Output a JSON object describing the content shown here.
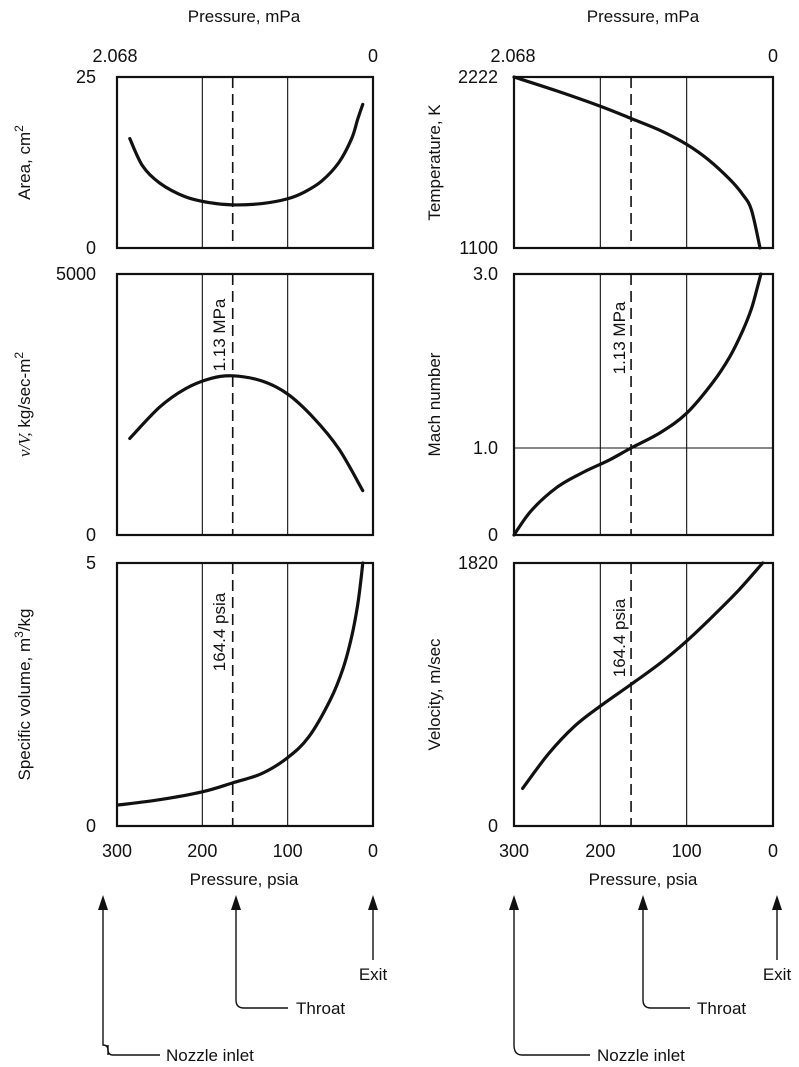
{
  "top_axis": {
    "label": "Pressure, mPa",
    "left_tick": "2.068",
    "right_tick": "0"
  },
  "bottom_axis": {
    "label": "Pressure, psia",
    "ticks": [
      "300",
      "200",
      "100",
      "0"
    ]
  },
  "annotations": {
    "throat_pressure_mpa": "1.13 MPa",
    "throat_pressure_psia": "164.4 psia",
    "nozzle_inlet": "Nozzle inlet",
    "throat": "Throat",
    "exit": "Exit"
  },
  "colors": {
    "ink": "#111111",
    "background": "#ffffff"
  },
  "chart_data": [
    {
      "type": "line",
      "ylabel": "Area, cm2",
      "ylabel_main": "Area, cm",
      "ylabel_sup": "2",
      "ylim_labels": [
        "0",
        "25"
      ],
      "ylim": [
        0,
        25
      ],
      "xlim": [
        300,
        0
      ],
      "series": [
        {
          "x": [
            285,
            270,
            250,
            220,
            190,
            164.4,
            130,
            100,
            80,
            60,
            40,
            25,
            18,
            12
          ],
          "values": [
            16,
            12,
            9.5,
            7.5,
            6.6,
            6.3,
            6.5,
            7.2,
            8.2,
            9.8,
            12.5,
            16,
            18.8,
            21
          ]
        }
      ],
      "reference_lines": [
        200,
        164.4,
        100
      ]
    },
    {
      "type": "line",
      "ylabel": "v/V, kg/sec-m2",
      "ylabel_italic": "v/V,",
      "ylabel_main": " kg/sec-m",
      "ylabel_sup": "2",
      "ylim_labels": [
        "0",
        "5000"
      ],
      "ylim": [
        0,
        5000
      ],
      "xlim": [
        300,
        0
      ],
      "series": [
        {
          "x": [
            285,
            250,
            220,
            190,
            164.4,
            130,
            100,
            70,
            40,
            12
          ],
          "values": [
            1850,
            2450,
            2800,
            3000,
            3050,
            2950,
            2700,
            2250,
            1650,
            850
          ]
        }
      ],
      "reference_lines": [
        200,
        164.4,
        100
      ]
    },
    {
      "type": "line",
      "ylabel": "Specific volume, m3/kg",
      "ylabel_main": "Specific volume, m",
      "ylabel_sup": "3",
      "ylabel_tail": "/kg",
      "ylim_labels": [
        "0",
        "5"
      ],
      "ylim": [
        0,
        5
      ],
      "xlim": [
        300,
        0
      ],
      "series": [
        {
          "x": [
            298,
            250,
            200,
            164.4,
            130,
            100,
            75,
            50,
            35,
            25,
            18,
            14,
            12
          ],
          "values": [
            0.4,
            0.5,
            0.65,
            0.82,
            1.0,
            1.3,
            1.7,
            2.4,
            3.0,
            3.6,
            4.2,
            4.7,
            5.0
          ]
        }
      ],
      "reference_lines": [
        200,
        164.4,
        100
      ]
    },
    {
      "type": "line",
      "ylabel": "Temperature, K",
      "ylim_labels": [
        "1100",
        "2222"
      ],
      "ylim": [
        1100,
        2222
      ],
      "xlim": [
        300,
        0
      ],
      "series": [
        {
          "x": [
            300,
            250,
            200,
            164.4,
            130,
            100,
            75,
            50,
            35,
            25,
            15
          ],
          "values": [
            2222,
            2130,
            2030,
            1950,
            1870,
            1780,
            1680,
            1550,
            1450,
            1350,
            1100
          ]
        }
      ],
      "reference_lines": [
        200,
        164.4,
        100
      ]
    },
    {
      "type": "line",
      "ylabel": "Mach number",
      "ylim_labels": [
        "0",
        "3.0"
      ],
      "tick_values": [
        0,
        1.0,
        3.0
      ],
      "tick_labels": [
        "0",
        "1.0",
        "3.0"
      ],
      "ylim": [
        0,
        3.0
      ],
      "horizontal_line": 1.0,
      "xlim": [
        300,
        0
      ],
      "series": [
        {
          "x": [
            300,
            280,
            250,
            220,
            190,
            164.4,
            130,
            100,
            70,
            50,
            35,
            25,
            18,
            14
          ],
          "values": [
            0,
            0.28,
            0.55,
            0.72,
            0.86,
            1.0,
            1.18,
            1.4,
            1.75,
            2.05,
            2.35,
            2.6,
            2.85,
            3.0
          ]
        }
      ],
      "reference_lines": [
        200,
        164.4,
        100
      ]
    },
    {
      "type": "line",
      "ylabel": "Velocity, m/sec",
      "ylim_labels": [
        "0",
        "1820"
      ],
      "ylim": [
        0,
        1820
      ],
      "xlim": [
        300,
        0
      ],
      "series": [
        {
          "x": [
            290,
            260,
            230,
            200,
            164.4,
            130,
            100,
            70,
            40,
            12
          ],
          "values": [
            260,
            500,
            690,
            830,
            980,
            1130,
            1280,
            1450,
            1630,
            1820
          ]
        }
      ],
      "reference_lines": [
        200,
        164.4,
        100
      ]
    }
  ]
}
